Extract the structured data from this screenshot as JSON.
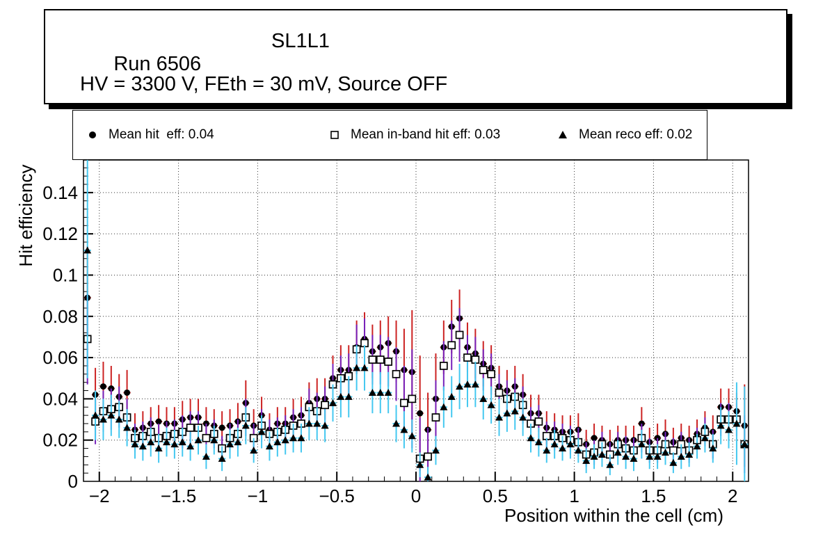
{
  "title_box": {
    "run": "Run 6506",
    "chamber": "SL1L1",
    "conditions": "HV = 3300 V, FEth = 30 mV, Source OFF"
  },
  "legend": [
    {
      "marker": "filled-circle",
      "label": "Mean hit  eff: 0.04"
    },
    {
      "marker": "open-square",
      "label": "Mean in-band hit eff: 0.03"
    },
    {
      "marker": "filled-triangle",
      "label": "Mean reco eff: 0.02"
    }
  ],
  "chart_data": {
    "type": "scatter",
    "title": "",
    "xlabel": "Position within the cell (cm)",
    "ylabel": "Hit efficiency",
    "xlim": [
      -2.1,
      2.1
    ],
    "ylim": [
      0,
      0.1558
    ],
    "grid": "dotted",
    "x_ticks_major": [
      -2,
      -1.5,
      -1,
      -0.5,
      0,
      0.5,
      1,
      1.5,
      2
    ],
    "x_tick_labels": [
      "−2",
      "−1.5",
      "−1",
      "−0.5",
      "0",
      "0.5",
      "1",
      "1.5",
      "2"
    ],
    "x_minor_step": 0.1,
    "y_ticks_major": [
      0,
      0.02,
      0.04,
      0.06,
      0.08,
      0.1,
      0.12,
      0.14
    ],
    "y_tick_labels": [
      "0",
      "0.02",
      "0.04",
      "0.06",
      "0.08",
      "0.1",
      "0.12",
      "0.14"
    ],
    "y_minor_step": 0.004,
    "x_start": -2.075,
    "x_step": 0.05,
    "n_points": 84,
    "marker_color": "#000000",
    "series": [
      {
        "name": "Mean hit eff",
        "mean": 0.04,
        "marker": "filled-circle",
        "error_color": "#cc2222",
        "y": [
          0.089,
          0.042,
          0.046,
          0.045,
          0.041,
          0.043,
          0.025,
          0.026,
          0.028,
          0.029,
          0.028,
          0.028,
          0.03,
          0.031,
          0.031,
          0.028,
          0.027,
          0.026,
          0.027,
          0.029,
          0.038,
          0.027,
          0.032,
          0.025,
          0.028,
          0.028,
          0.031,
          0.032,
          0.038,
          0.04,
          0.04,
          0.05,
          0.054,
          0.054,
          0.065,
          0.069,
          0.063,
          0.065,
          0.067,
          0.063,
          0.054,
          0.053,
          0.033,
          0.025,
          0.04,
          0.065,
          0.075,
          0.079,
          0.065,
          0.062,
          0.057,
          0.055,
          0.046,
          0.044,
          0.046,
          0.042,
          0.033,
          0.033,
          0.026,
          0.025,
          0.024,
          0.024,
          0.025,
          0.018,
          0.021,
          0.02,
          0.018,
          0.02,
          0.02,
          0.02,
          0.028,
          0.019,
          0.021,
          0.023,
          0.019,
          0.021,
          0.02,
          0.023,
          0.026,
          0.024,
          0.036,
          0.036,
          0.034,
          0.027
        ],
        "err": [
          0.025,
          0.013,
          0.012,
          0.011,
          0.011,
          0.011,
          0.008,
          0.008,
          0.008,
          0.008,
          0.008,
          0.008,
          0.009,
          0.009,
          0.009,
          0.008,
          0.008,
          0.008,
          0.008,
          0.009,
          0.011,
          0.008,
          0.009,
          0.008,
          0.008,
          0.008,
          0.009,
          0.009,
          0.01,
          0.01,
          0.01,
          0.011,
          0.012,
          0.012,
          0.013,
          0.013,
          0.013,
          0.013,
          0.013,
          0.015,
          0.02,
          0.03,
          0.028,
          0.018,
          0.022,
          0.013,
          0.013,
          0.014,
          0.012,
          0.012,
          0.011,
          0.011,
          0.01,
          0.01,
          0.01,
          0.01,
          0.009,
          0.009,
          0.008,
          0.008,
          0.008,
          0.008,
          0.008,
          0.007,
          0.007,
          0.007,
          0.007,
          0.007,
          0.007,
          0.007,
          0.008,
          0.007,
          0.007,
          0.007,
          0.007,
          0.007,
          0.007,
          0.007,
          0.008,
          0.008,
          0.009,
          0.009,
          0.009,
          0.02
        ]
      },
      {
        "name": "Mean in-band hit eff",
        "mean": 0.03,
        "marker": "open-square",
        "error_color": "#7722bb",
        "y": [
          0.069,
          0.029,
          0.034,
          0.035,
          0.036,
          0.031,
          0.021,
          0.022,
          0.024,
          0.021,
          0.022,
          0.023,
          0.024,
          0.026,
          0.026,
          0.021,
          0.023,
          0.016,
          0.021,
          0.023,
          0.031,
          0.021,
          0.027,
          0.023,
          0.024,
          0.025,
          0.027,
          0.028,
          0.036,
          0.034,
          0.037,
          0.047,
          0.05,
          0.051,
          0.064,
          0.067,
          0.059,
          0.059,
          0.058,
          0.052,
          0.038,
          0.04,
          0.011,
          0.012,
          0.031,
          0.056,
          0.066,
          0.071,
          0.06,
          0.059,
          0.054,
          0.052,
          0.043,
          0.04,
          0.041,
          0.037,
          0.028,
          0.029,
          0.022,
          0.022,
          0.021,
          0.02,
          0.019,
          0.013,
          0.014,
          0.018,
          0.013,
          0.018,
          0.016,
          0.015,
          0.021,
          0.015,
          0.015,
          0.018,
          0.015,
          0.018,
          0.015,
          0.02,
          0.024,
          0.018,
          0.03,
          0.03,
          0.03,
          0.018
        ],
        "err": [
          0.022,
          0.011,
          0.01,
          0.01,
          0.01,
          0.009,
          0.007,
          0.007,
          0.007,
          0.007,
          0.007,
          0.007,
          0.008,
          0.008,
          0.008,
          0.007,
          0.007,
          0.006,
          0.007,
          0.007,
          0.009,
          0.007,
          0.008,
          0.007,
          0.007,
          0.007,
          0.008,
          0.008,
          0.009,
          0.009,
          0.009,
          0.01,
          0.011,
          0.011,
          0.012,
          0.012,
          0.012,
          0.012,
          0.012,
          0.013,
          0.018,
          0.024,
          0.02,
          0.014,
          0.018,
          0.012,
          0.012,
          0.013,
          0.011,
          0.011,
          0.01,
          0.01,
          0.009,
          0.009,
          0.009,
          0.009,
          0.008,
          0.008,
          0.007,
          0.007,
          0.007,
          0.007,
          0.007,
          0.006,
          0.006,
          0.006,
          0.006,
          0.006,
          0.006,
          0.006,
          0.007,
          0.006,
          0.006,
          0.006,
          0.006,
          0.006,
          0.006,
          0.006,
          0.007,
          0.007,
          0.008,
          0.008,
          0.008,
          0.014
        ]
      },
      {
        "name": "Mean reco eff",
        "mean": 0.02,
        "marker": "filled-triangle",
        "error_color": "#44c8f0",
        "y": [
          0.112,
          0.032,
          0.03,
          0.032,
          0.03,
          0.026,
          0.018,
          0.017,
          0.019,
          0.016,
          0.019,
          0.018,
          0.019,
          0.017,
          0.02,
          0.012,
          0.02,
          0.011,
          0.018,
          0.019,
          0.027,
          0.015,
          0.024,
          0.017,
          0.019,
          0.02,
          0.021,
          0.021,
          0.028,
          0.028,
          0.027,
          0.038,
          0.041,
          0.041,
          0.055,
          0.055,
          0.043,
          0.043,
          0.043,
          0.028,
          0.025,
          0.022,
          0.008,
          0.002,
          0.015,
          0.036,
          0.041,
          0.046,
          0.047,
          0.047,
          0.04,
          0.037,
          0.031,
          0.033,
          0.034,
          0.031,
          0.021,
          0.019,
          0.015,
          0.018,
          0.016,
          0.018,
          0.015,
          0.01,
          0.012,
          0.013,
          0.008,
          0.014,
          0.012,
          0.011,
          0.018,
          0.012,
          0.012,
          0.014,
          0.009,
          0.012,
          0.013,
          0.017,
          0.021,
          0.016,
          0.027,
          0.025,
          0.028,
          0.018
        ],
        "err": [
          0.062,
          0.012,
          0.01,
          0.01,
          0.009,
          0.009,
          0.007,
          0.007,
          0.007,
          0.007,
          0.007,
          0.007,
          0.007,
          0.007,
          0.007,
          0.006,
          0.007,
          0.006,
          0.007,
          0.007,
          0.009,
          0.006,
          0.008,
          0.007,
          0.007,
          0.007,
          0.007,
          0.007,
          0.008,
          0.008,
          0.008,
          0.009,
          0.01,
          0.01,
          0.011,
          0.011,
          0.01,
          0.01,
          0.01,
          0.009,
          0.009,
          0.008,
          0.006,
          0.005,
          0.007,
          0.01,
          0.01,
          0.011,
          0.011,
          0.011,
          0.01,
          0.009,
          0.009,
          0.009,
          0.009,
          0.009,
          0.007,
          0.007,
          0.006,
          0.007,
          0.006,
          0.007,
          0.006,
          0.006,
          0.006,
          0.006,
          0.005,
          0.006,
          0.006,
          0.006,
          0.007,
          0.006,
          0.006,
          0.006,
          0.005,
          0.006,
          0.006,
          0.006,
          0.007,
          0.007,
          0.009,
          0.009,
          0.02,
          0.028
        ]
      }
    ]
  }
}
